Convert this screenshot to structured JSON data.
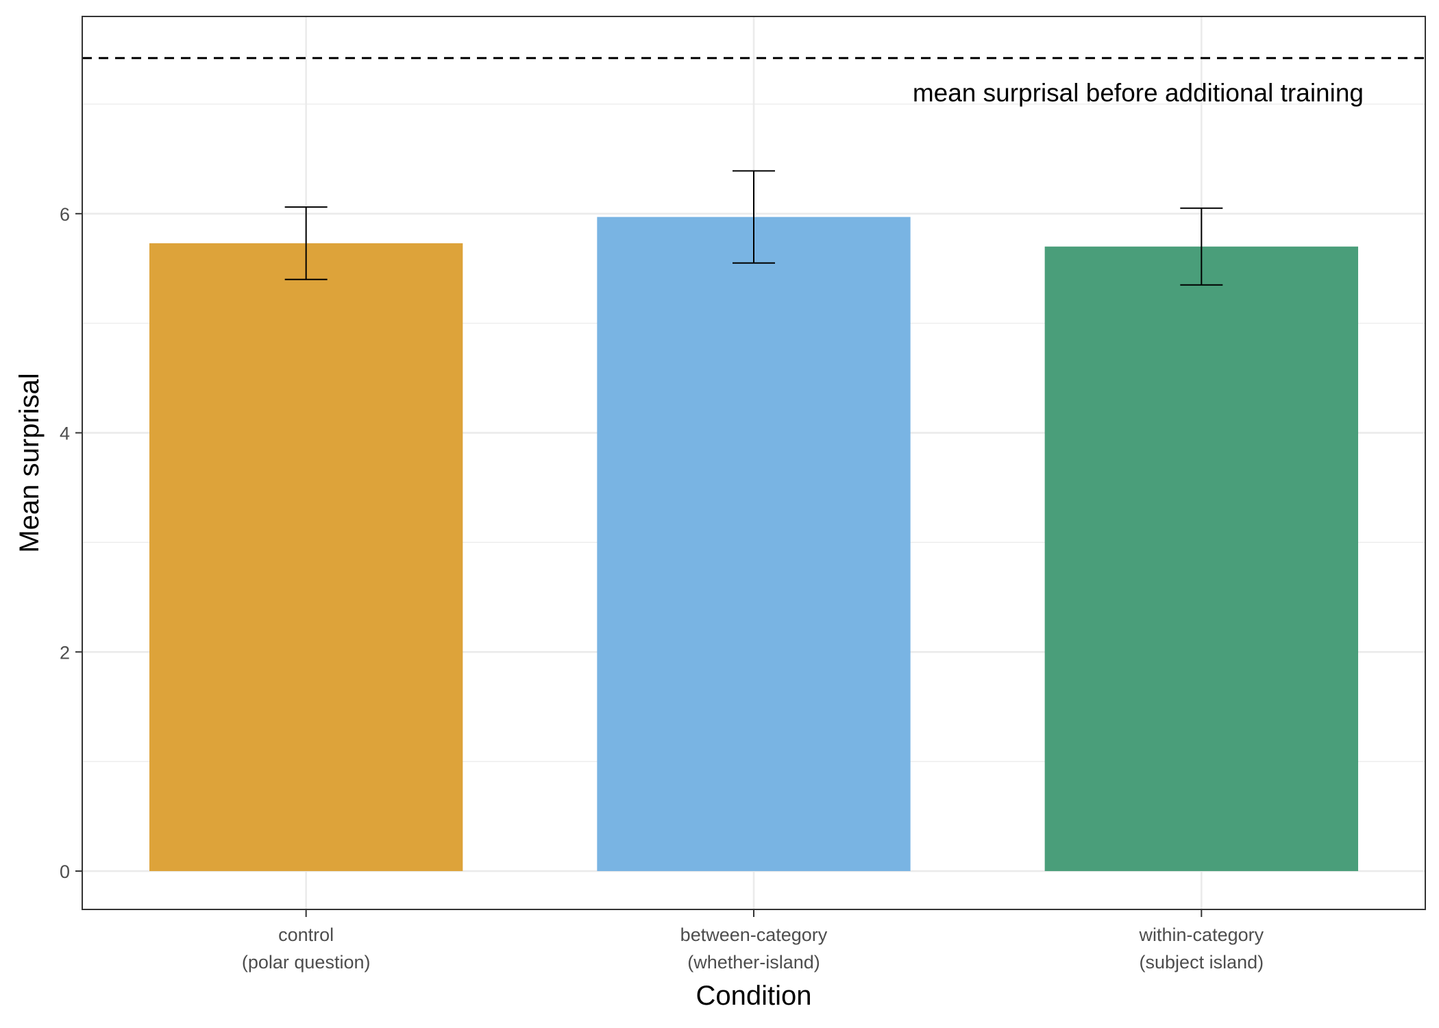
{
  "chart_data": {
    "type": "bar",
    "title": "",
    "xlabel": "Condition",
    "ylabel": "Mean surprisal",
    "categories": [
      [
        "control",
        "(polar question)"
      ],
      [
        "between-category",
        "(whether-island)"
      ],
      [
        "within-category",
        "(subject island)"
      ]
    ],
    "values": [
      5.73,
      5.97,
      5.7
    ],
    "error_low": [
      5.4,
      5.55,
      5.35
    ],
    "error_high": [
      6.06,
      6.39,
      6.05
    ],
    "colors": [
      "#DDA33A",
      "#79B4E3",
      "#4A9E7A"
    ],
    "ylim": [
      -0.35,
      7.8
    ],
    "yticks": [
      0,
      2,
      4,
      6
    ],
    "grid": true,
    "reference_line": {
      "value": 7.42,
      "style": "dashed",
      "label": "mean surprisal before additional training"
    }
  }
}
